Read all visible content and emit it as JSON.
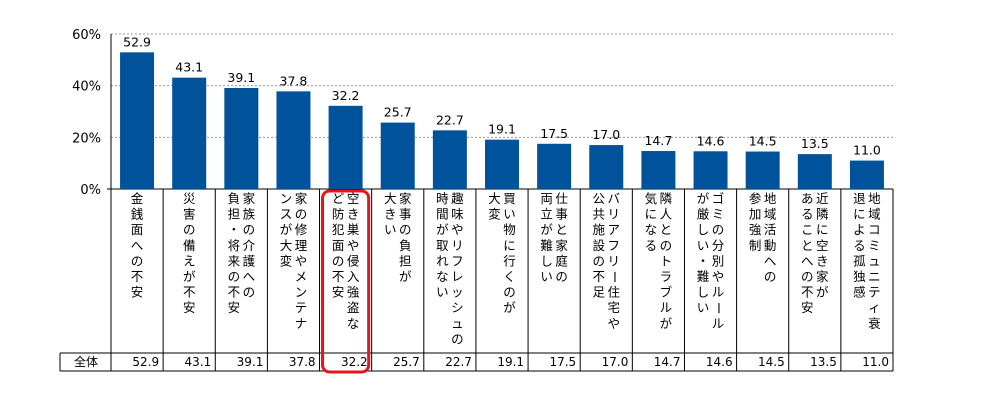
{
  "chart_data": {
    "type": "bar",
    "ylim": [
      0,
      60
    ],
    "yticks": [
      "0%",
      "20%",
      "40%",
      "60%"
    ],
    "ytick_values": [
      0,
      20,
      40,
      60
    ],
    "grid": true,
    "bar_color": "#00529b",
    "highlight_color": "#e8141c",
    "highlight_index": 4,
    "table_row_label": "全体",
    "categories": [
      {
        "lines": [
          "金銭面への不安"
        ],
        "value": 52.9,
        "label": "52.9",
        "table": "52.9"
      },
      {
        "lines": [
          "災害の備えが不安"
        ],
        "value": 43.1,
        "label": "43.1",
        "table": "43.1"
      },
      {
        "lines": [
          "家族の介護への",
          "負担・将来の不安"
        ],
        "value": 39.1,
        "label": "39.1",
        "table": "39.1"
      },
      {
        "lines": [
          "家の修理やメンテナ",
          "ンスが大変"
        ],
        "value": 37.8,
        "label": "37.8",
        "table": "37.8"
      },
      {
        "lines": [
          "空き巣や侵入強盗な",
          "ど防犯面の不安"
        ],
        "value": 32.2,
        "label": "32.2",
        "table": "32.2"
      },
      {
        "lines": [
          "家事の負担が",
          "大きい"
        ],
        "value": 25.7,
        "label": "25.7",
        "table": "25.7"
      },
      {
        "lines": [
          "趣味やリフレッシュの",
          "時間が取れない"
        ],
        "value": 22.7,
        "label": "22.7",
        "table": "22.7"
      },
      {
        "lines": [
          "買い物に行くのが",
          "大変"
        ],
        "value": 19.1,
        "label": "19.1",
        "table": "19.1"
      },
      {
        "lines": [
          "仕事と家庭の",
          "両立が難しい"
        ],
        "value": 17.5,
        "label": "17.5",
        "table": "17.5"
      },
      {
        "lines": [
          "バリアフリー住宅や",
          "公共施設の不足"
        ],
        "value": 17.0,
        "label": "17.0",
        "table": "17.0"
      },
      {
        "lines": [
          "隣人とのトラブルが",
          "気になる"
        ],
        "value": 14.7,
        "label": "14.7",
        "table": "14.7"
      },
      {
        "lines": [
          "ゴミの分別やルール",
          "が厳しい・難しい"
        ],
        "value": 14.6,
        "label": "14.6",
        "table": "14.6"
      },
      {
        "lines": [
          "地域活動への",
          "参加強制"
        ],
        "value": 14.5,
        "label": "14.5",
        "table": "14.5"
      },
      {
        "lines": [
          "近隣に空き家が",
          "あることへの不安"
        ],
        "value": 13.5,
        "label": "13.5",
        "table": "13.5"
      },
      {
        "lines": [
          "地域コミュニティ衰",
          "退による孤独感"
        ],
        "value": 11.0,
        "label": "11.0",
        "table": "11.0"
      }
    ]
  }
}
